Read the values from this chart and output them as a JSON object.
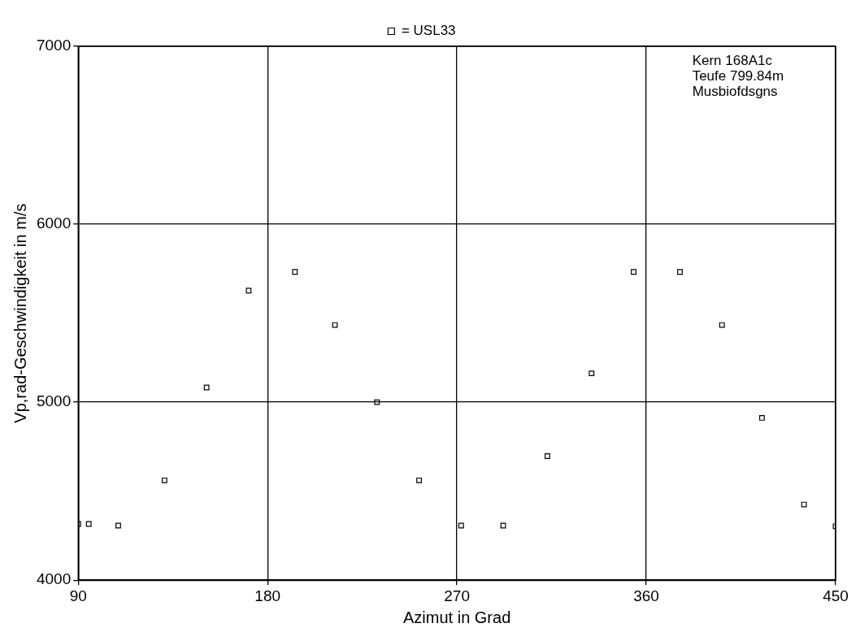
{
  "chart_data": {
    "type": "scatter",
    "xlabel": "Azimut in Grad",
    "ylabel": "Vp,rad-Geschwindigkeit in m/s",
    "x": [
      90,
      95,
      109,
      131,
      151,
      171,
      193,
      212,
      232,
      252,
      272,
      292,
      313,
      334,
      354,
      376,
      396,
      415,
      435,
      450
    ],
    "series": [
      {
        "name": "= USL33",
        "color": "#000000",
        "values": [
          4316,
          4316,
          4307,
          4561,
          5083,
          5627,
          5732,
          5434,
          5000,
          4561,
          4307,
          4307,
          4697,
          5162,
          5732,
          5732,
          5434,
          4912,
          4425,
          4303
        ]
      }
    ],
    "xlim": [
      90,
      450
    ],
    "xticks": [
      90,
      180,
      270,
      360,
      450
    ],
    "ylim": [
      4000,
      7000
    ],
    "yticks": [
      4000,
      5000,
      6000,
      7000
    ],
    "grid": true,
    "legend": "top",
    "marker": "square",
    "annotations": [
      "Kern 168A1c",
      "Teufe 799.84m",
      "Musbiofdsgns"
    ]
  }
}
